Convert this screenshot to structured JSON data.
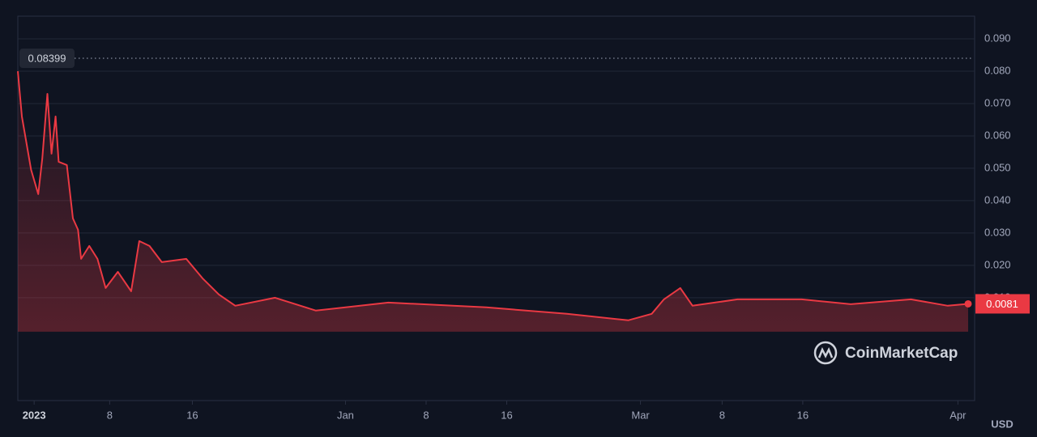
{
  "chart_data": {
    "type": "line",
    "color": "#ea3943",
    "x": [
      0,
      0.4,
      1.3,
      2.0,
      2.4,
      2.9,
      3.3,
      3.7,
      4.0,
      4.8,
      5.4,
      5.9,
      6.2,
      7.0,
      7.8,
      8.6,
      9.8,
      11.1,
      11.9,
      12.9,
      14.1,
      16.5,
      18.1,
      19.7,
      21.3,
      25.2,
      29.2,
      36.3,
      45.9,
      53.8,
      59.8,
      62.1,
      63.3,
      64.9,
      66.1,
      70.5,
      76.8,
      81.6,
      87.5,
      91.1,
      93.1
    ],
    "values": [
      0.08,
      0.066,
      0.0495,
      0.042,
      0.053,
      0.073,
      0.0545,
      0.066,
      0.052,
      0.051,
      0.0345,
      0.031,
      0.022,
      0.026,
      0.022,
      0.013,
      0.018,
      0.012,
      0.0275,
      0.026,
      0.021,
      0.022,
      0.016,
      0.011,
      0.0075,
      0.01,
      0.006,
      0.0085,
      0.007,
      0.005,
      0.003,
      0.005,
      0.0095,
      0.013,
      0.0075,
      0.0095,
      0.0095,
      0.008,
      0.0095,
      0.0075,
      0.0081
    ],
    "xlim": [
      0,
      93.1
    ],
    "xticks": [
      {
        "value": 1.6,
        "label": "2023"
      },
      {
        "value": 9.0,
        "label": "8"
      },
      {
        "value": 17.1,
        "label": "16"
      },
      {
        "value": 32.1,
        "label": "Jan"
      },
      {
        "value": 40.0,
        "label": "8"
      },
      {
        "value": 47.9,
        "label": "16"
      },
      {
        "value": 61.0,
        "label": "Mar"
      },
      {
        "value": 69.0,
        "label": "8"
      },
      {
        "value": 76.9,
        "label": "16"
      },
      {
        "value": 92.1,
        "label": "Apr"
      }
    ],
    "ylim": [
      -0.0218,
      0.097
    ],
    "yticks": [
      {
        "value": 0.01,
        "label": "0.010"
      },
      {
        "value": 0.02,
        "label": "0.020"
      },
      {
        "value": 0.03,
        "label": "0.030"
      },
      {
        "value": 0.04,
        "label": "0.040"
      },
      {
        "value": 0.05,
        "label": "0.050"
      },
      {
        "value": 0.06,
        "label": "0.060"
      },
      {
        "value": 0.07,
        "label": "0.070"
      },
      {
        "value": 0.08,
        "label": "0.080"
      },
      {
        "value": 0.09,
        "label": "0.090"
      }
    ],
    "grid": true,
    "max_price": 0.08399,
    "last_price": 0.0081,
    "currency_label": "USD",
    "watermark": "CoinMarketCap"
  }
}
